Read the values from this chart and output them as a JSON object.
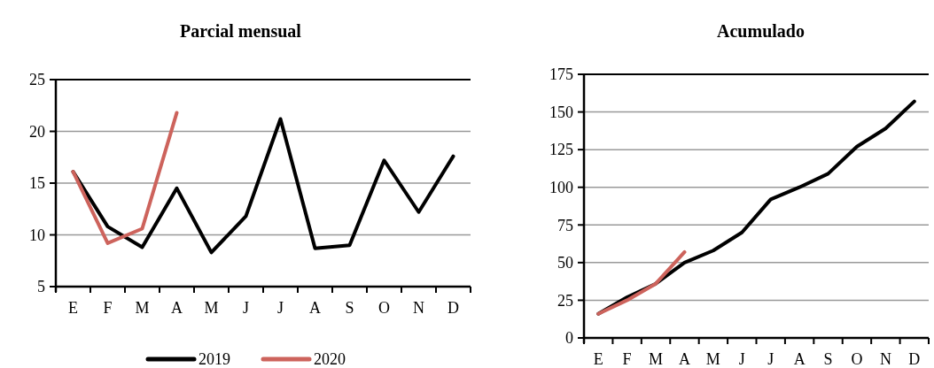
{
  "chart_data": [
    {
      "type": "line",
      "title": "Parcial mensual",
      "categories": [
        "E",
        "F",
        "M",
        "A",
        "M",
        "J",
        "J",
        "A",
        "S",
        "O",
        "N",
        "D"
      ],
      "ylim": [
        5,
        25
      ],
      "yticks": [
        5,
        10,
        15,
        20,
        25
      ],
      "grid": "y",
      "legend": "bottom",
      "series": [
        {
          "name": "2019",
          "color": "#000000",
          "values": [
            16.1,
            10.8,
            8.8,
            14.5,
            8.3,
            11.8,
            21.2,
            8.7,
            9.0,
            17.2,
            12.2,
            17.6
          ]
        },
        {
          "name": "2020",
          "color": "#cd635c",
          "values": [
            16.1,
            9.2,
            10.6,
            21.8,
            null,
            null,
            null,
            null,
            null,
            null,
            null,
            null
          ]
        }
      ]
    },
    {
      "type": "line",
      "title": "Acumulado",
      "categories": [
        "E",
        "F",
        "M",
        "A",
        "M",
        "J",
        "J",
        "A",
        "S",
        "O",
        "N",
        "D"
      ],
      "ylim": [
        0,
        175
      ],
      "yticks": [
        0,
        25,
        50,
        75,
        100,
        125,
        150,
        175
      ],
      "grid": "y",
      "series": [
        {
          "color": "#000000",
          "values": [
            16,
            27,
            36,
            50,
            58,
            70,
            92,
            100,
            109,
            127,
            139,
            157
          ]
        },
        {
          "color": "#cd635c",
          "values": [
            16,
            25,
            36,
            57,
            null,
            null,
            null,
            null,
            null,
            null,
            null,
            null
          ]
        }
      ]
    }
  ]
}
